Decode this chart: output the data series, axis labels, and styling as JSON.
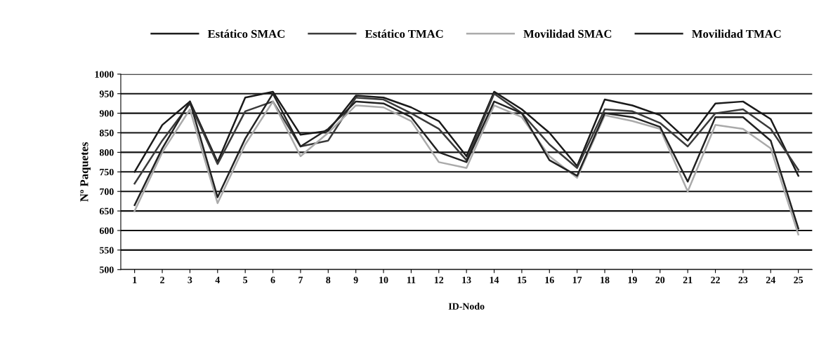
{
  "chart_data": {
    "type": "line",
    "xlabel": "ID-Nodo",
    "ylabel": "Nº Paquetes",
    "categories": [
      "1",
      "2",
      "3",
      "4",
      "5",
      "6",
      "7",
      "8",
      "9",
      "10",
      "11",
      "12",
      "13",
      "14",
      "15",
      "16",
      "17",
      "18",
      "19",
      "20",
      "21",
      "22",
      "23",
      "24",
      "25"
    ],
    "series": [
      {
        "name": "Estático SMAC",
        "color": "#1a1a1a",
        "values": [
          750,
          870,
          930,
          775,
          940,
          955,
          845,
          855,
          945,
          940,
          915,
          880,
          790,
          955,
          910,
          850,
          765,
          935,
          920,
          895,
          830,
          925,
          930,
          885,
          740
        ]
      },
      {
        "name": "Estático TMAC",
        "color": "#3a3a3a",
        "values": [
          720,
          830,
          925,
          770,
          905,
          930,
          815,
          830,
          940,
          935,
          900,
          860,
          780,
          950,
          900,
          820,
          760,
          910,
          905,
          875,
          815,
          900,
          910,
          860,
          755
        ]
      },
      {
        "name": "Movilidad SMAC",
        "color": "#aaaaaa",
        "values": [
          650,
          800,
          910,
          670,
          820,
          930,
          790,
          850,
          920,
          915,
          880,
          775,
          760,
          920,
          890,
          790,
          735,
          895,
          880,
          860,
          700,
          870,
          860,
          810,
          590
        ]
      },
      {
        "name": "Movilidad TMAC",
        "color": "#222222",
        "values": [
          665,
          810,
          930,
          685,
          835,
          950,
          815,
          860,
          930,
          925,
          890,
          800,
          775,
          930,
          900,
          780,
          740,
          900,
          890,
          865,
          725,
          890,
          890,
          830,
          605
        ]
      }
    ],
    "ylim": [
      500,
      1000
    ],
    "yticks": [
      500,
      550,
      600,
      650,
      700,
      750,
      800,
      850,
      900,
      950,
      1000
    ],
    "grid": "y",
    "legend": "top",
    "marker": "none",
    "line_style": "solid"
  }
}
